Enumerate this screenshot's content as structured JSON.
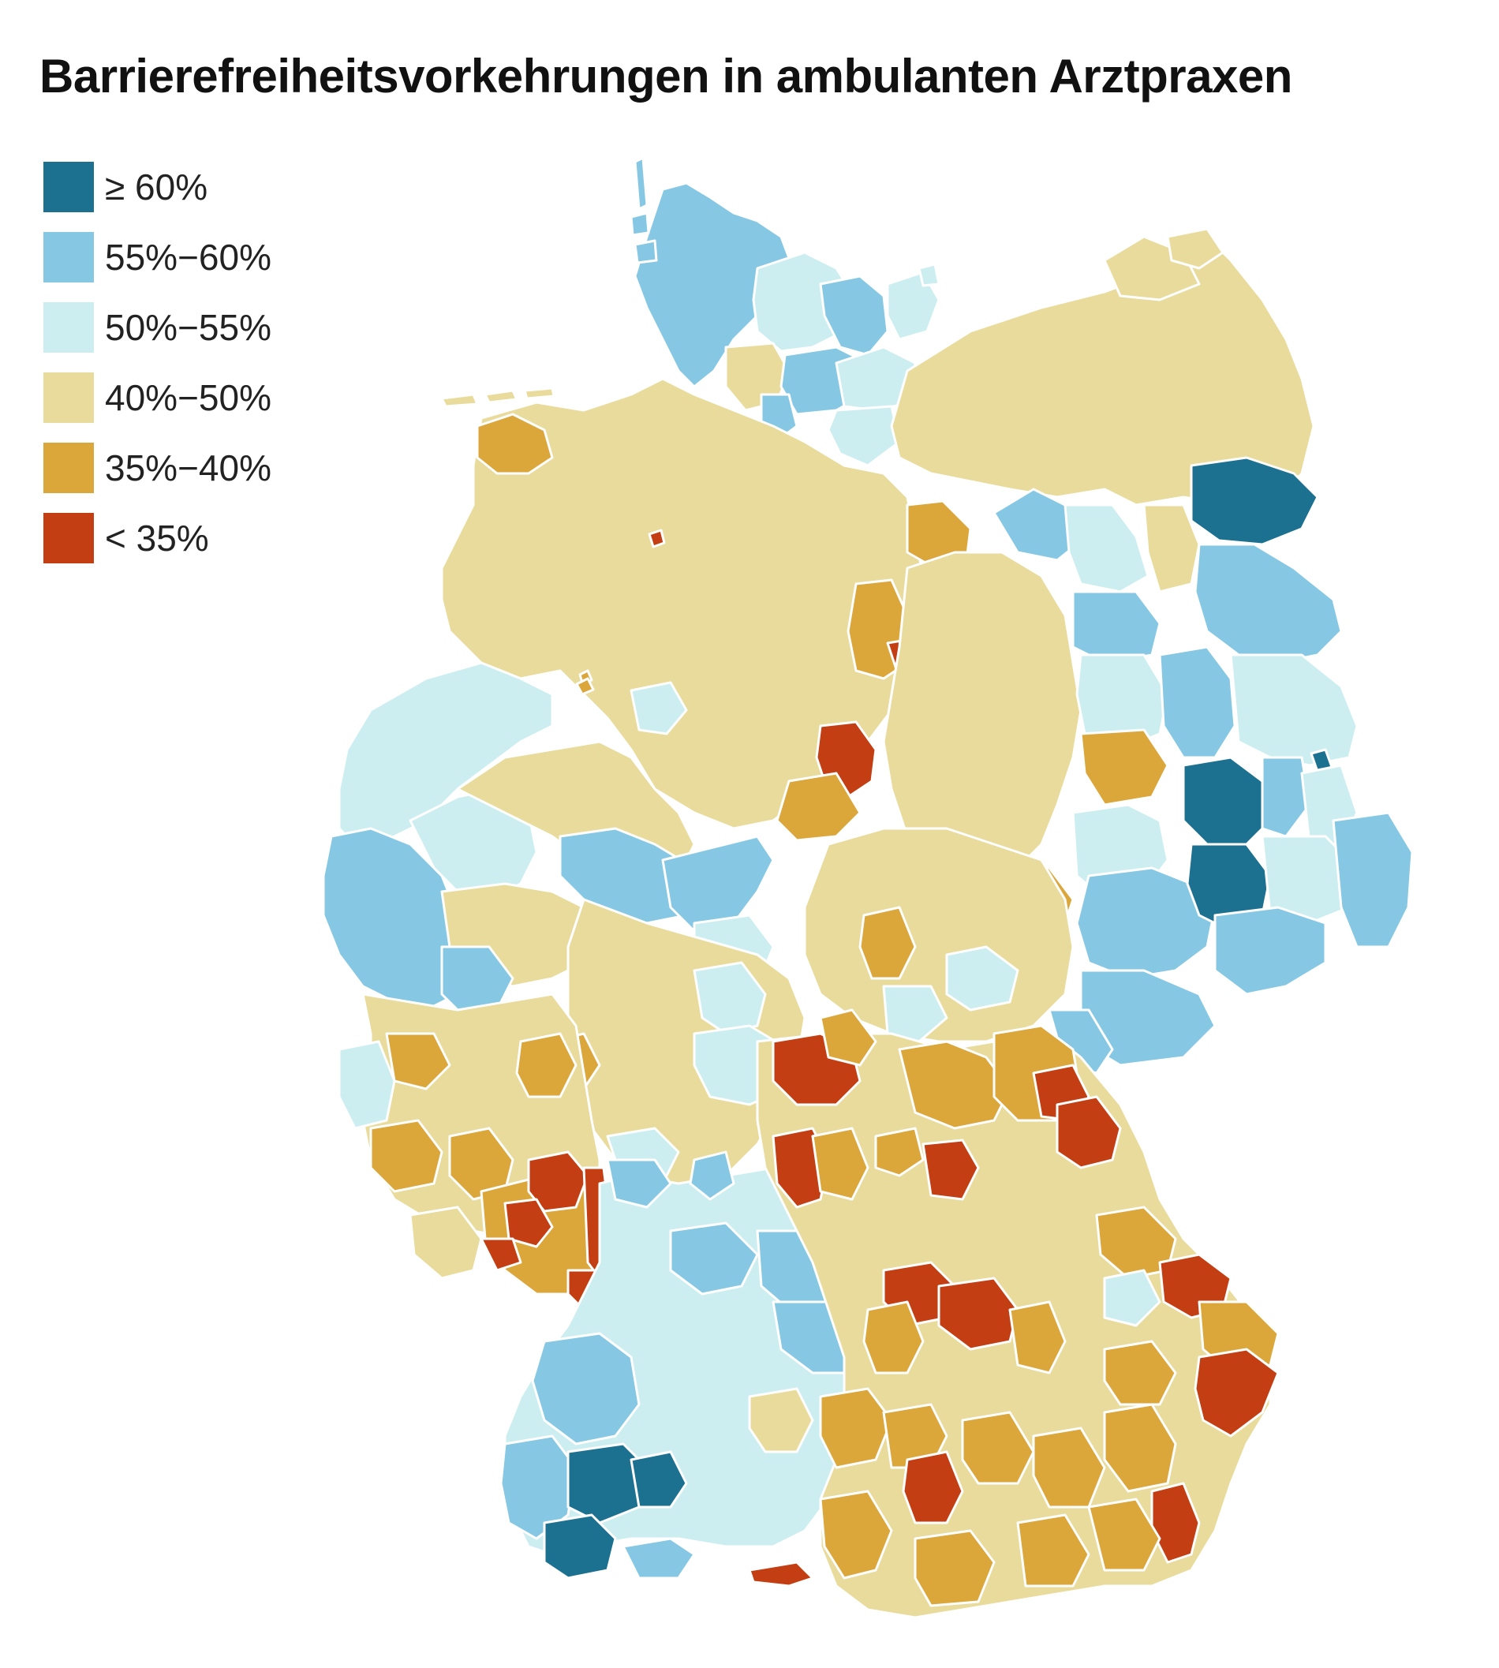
{
  "title": "Barrierefreiheitsvorkehrungen in ambulanten Arztpraxen",
  "legend": [
    {
      "label": "≥ 60%",
      "color": "#1c7090"
    },
    {
      "label": "55%−60%",
      "color": "#86c8e4"
    },
    {
      "label": "50%−55%",
      "color": "#cdeef0"
    },
    {
      "label": "40%−50%",
      "color": "#e8db9c"
    },
    {
      "label": "35%−40%",
      "color": "#dba63a"
    },
    {
      "label": "< 35%",
      "color": "#c33f13"
    }
  ],
  "map": {
    "colors": {
      "c60": "#1c7090",
      "c55": "#86c8e4",
      "c50": "#cdeef0",
      "c40": "#e8db9c",
      "c35": "#dba63a",
      "c00": "#c33f13"
    }
  }
}
